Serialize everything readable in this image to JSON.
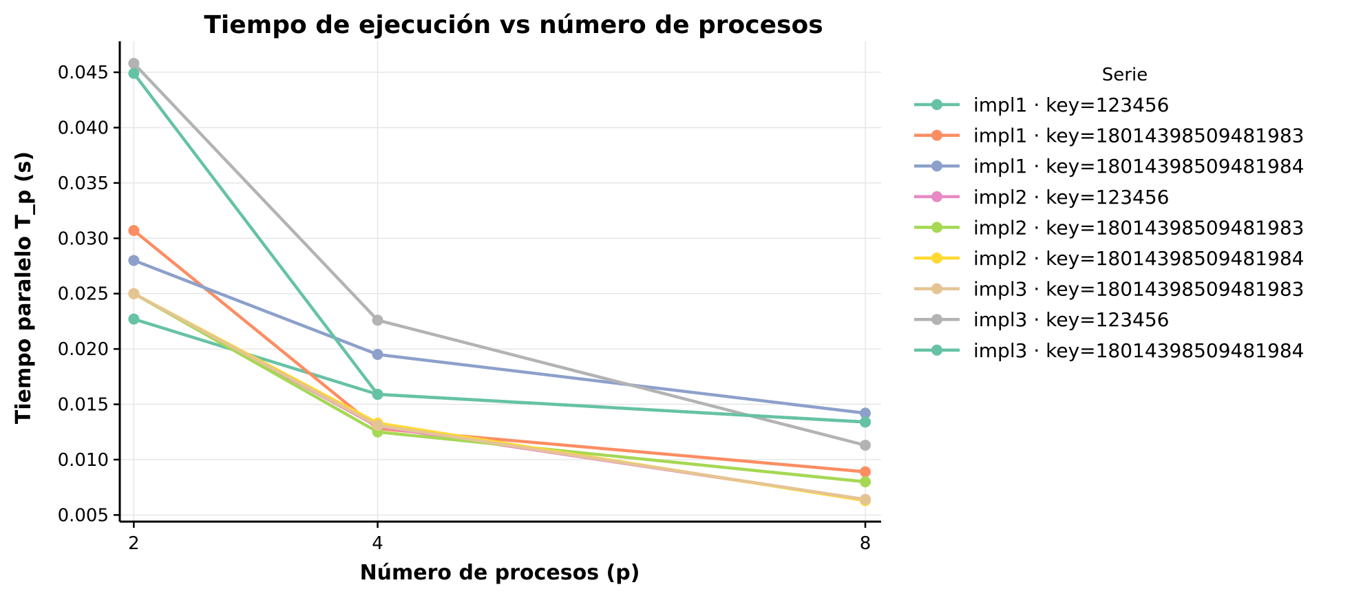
{
  "chart_data": {
    "type": "line",
    "title": "Tiempo de ejecución vs número de procesos",
    "xlabel": "Número de procesos (p)",
    "ylabel": "Tiempo paralelo T_p (s)",
    "x": [
      2,
      4,
      8
    ],
    "x_tick_labels": [
      "2",
      "4",
      "8"
    ],
    "y_ticks": [
      0.005,
      0.01,
      0.015,
      0.02,
      0.025,
      0.03,
      0.035,
      0.04,
      0.045
    ],
    "y_tick_labels": [
      "0.005",
      "0.010",
      "0.015",
      "0.020",
      "0.025",
      "0.030",
      "0.035",
      "0.040",
      "0.045"
    ],
    "xlim": [
      1.885,
      8.13
    ],
    "ylim": [
      0.0044,
      0.0478
    ],
    "grid": true,
    "legend_title": "Serie",
    "legend_position": "outside-right",
    "series": [
      {
        "name": "impl1 · key=123456",
        "color": "#66c2a5",
        "values": [
          0.0227,
          0.0159,
          0.0134
        ]
      },
      {
        "name": "impl1 · key=18014398509481983",
        "color": "#fc8d62",
        "values": [
          0.0307,
          0.0128,
          0.0089
        ]
      },
      {
        "name": "impl1 · key=18014398509481984",
        "color": "#8da0cb",
        "values": [
          0.028,
          0.0195,
          0.0142
        ]
      },
      {
        "name": "impl2 · key=123456",
        "color": "#e78ac3",
        "values": [
          0.025,
          0.013,
          0.0064
        ]
      },
      {
        "name": "impl2 · key=18014398509481983",
        "color": "#a6d854",
        "values": [
          0.025,
          0.0125,
          0.008
        ]
      },
      {
        "name": "impl2 · key=18014398509481984",
        "color": "#ffd92f",
        "values": [
          0.025,
          0.0133,
          0.0063
        ]
      },
      {
        "name": "impl3 · key=18014398509481983",
        "color": "#e5c494",
        "values": [
          0.025,
          0.0131,
          0.0064
        ]
      },
      {
        "name": "impl3 · key=123456",
        "color": "#b3b3b3",
        "values": [
          0.0458,
          0.0226,
          0.0113
        ]
      },
      {
        "name": "impl3 · key=18014398509481984",
        "color": "#66c2a5",
        "values": [
          0.0449,
          0.0159,
          0.0134
        ]
      }
    ]
  }
}
